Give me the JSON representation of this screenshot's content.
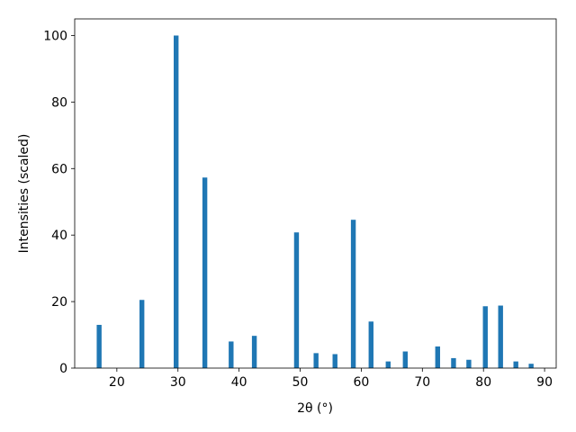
{
  "chart_data": {
    "type": "bar",
    "xlabel": "2θ (°)",
    "ylabel": "Intensities (scaled)",
    "x": [
      17.1,
      24.1,
      29.7,
      34.4,
      38.7,
      42.5,
      49.4,
      52.6,
      55.7,
      58.7,
      61.6,
      64.4,
      67.2,
      72.5,
      75.1,
      77.6,
      80.3,
      82.8,
      85.3,
      87.8
    ],
    "values": [
      13,
      20.5,
      100,
      57.3,
      8,
      9.7,
      40.8,
      4.5,
      4.2,
      44.6,
      14,
      2,
      5,
      6.5,
      3,
      2.5,
      18.6,
      18.8,
      2,
      1.3
    ],
    "color": "#1f77b4",
    "xlim": [
      13.1,
      91.9
    ],
    "xticks": [
      20,
      30,
      40,
      50,
      60,
      70,
      80,
      90
    ],
    "ylim": [
      0,
      105
    ],
    "yticks": [
      0,
      20,
      40,
      60,
      80,
      100
    ],
    "grid": false
  }
}
